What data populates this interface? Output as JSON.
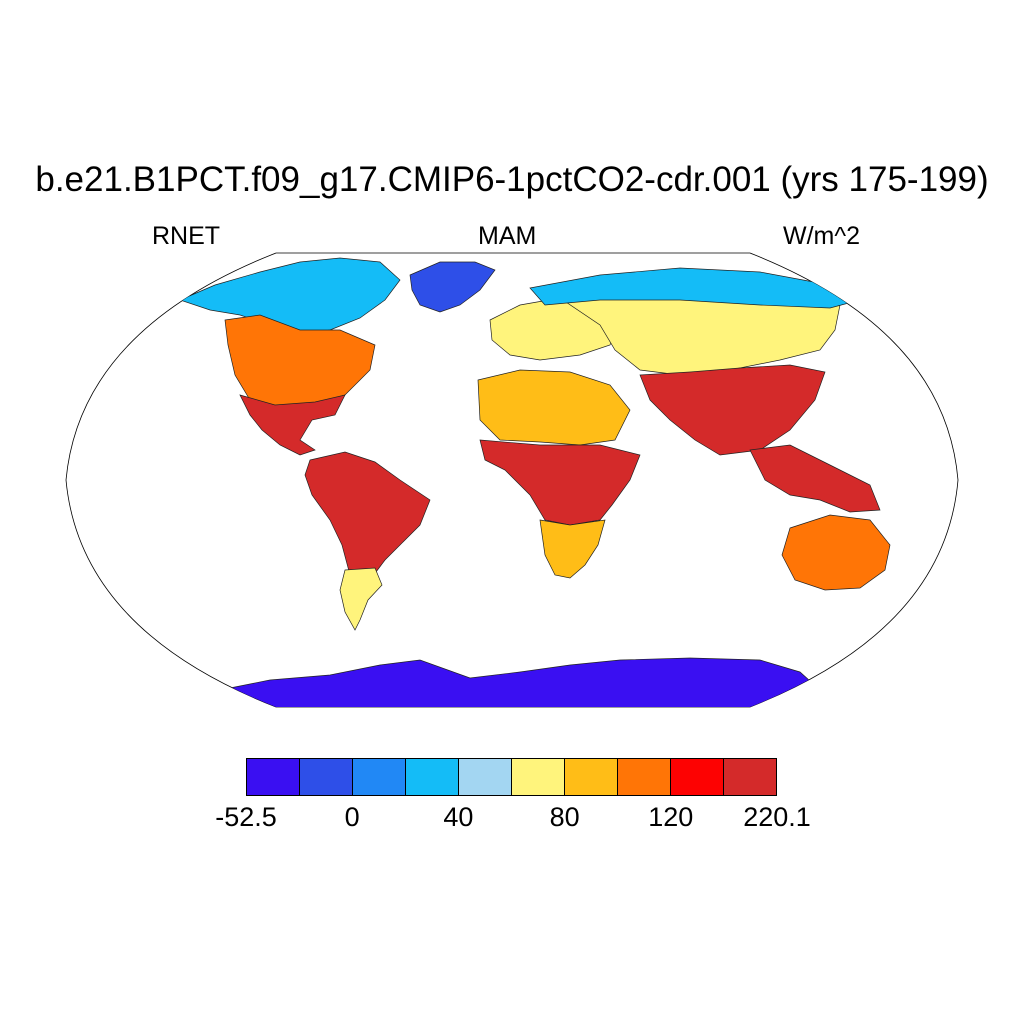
{
  "title": "b.e21.B1PCT.f09_g17.CMIP6-1pctCO2-cdr.001 (yrs 175-199)",
  "variable": "RNET",
  "season": "MAM",
  "units": "W/m^2",
  "colorbar": {
    "colors": [
      "#3a0ff2",
      "#2e4fe8",
      "#2188f5",
      "#14bcf7",
      "#a3d6f2",
      "#fff47c",
      "#ffbd17",
      "#ff7506",
      "#fd0202",
      "#d42a2a"
    ],
    "labels": [
      {
        "text": "-52.5",
        "boundary": 0
      },
      {
        "text": "0",
        "boundary": 2
      },
      {
        "text": "40",
        "boundary": 4
      },
      {
        "text": "80",
        "boundary": 6
      },
      {
        "text": "120",
        "boundary": 8
      },
      {
        "text": "220.1",
        "boundary": 10
      }
    ]
  },
  "regions": [
    {
      "name": "north-america-arctic",
      "level": 3
    },
    {
      "name": "greenland",
      "level": 1
    },
    {
      "name": "north-america-north",
      "level": 7
    },
    {
      "name": "north-america-south",
      "level": 9
    },
    {
      "name": "south-america",
      "level": 9
    },
    {
      "name": "patagonia",
      "level": 5
    },
    {
      "name": "europe",
      "level": 5
    },
    {
      "name": "sahara",
      "level": 6
    },
    {
      "name": "africa-tropics",
      "level": 9
    },
    {
      "name": "southern-africa",
      "level": 6
    },
    {
      "name": "asia-north",
      "level": 5
    },
    {
      "name": "siberia-arctic",
      "level": 3
    },
    {
      "name": "asia-south",
      "level": 9
    },
    {
      "name": "southeast-asia",
      "level": 9
    },
    {
      "name": "australia",
      "level": 7
    },
    {
      "name": "antarctica",
      "level": 0
    }
  ]
}
